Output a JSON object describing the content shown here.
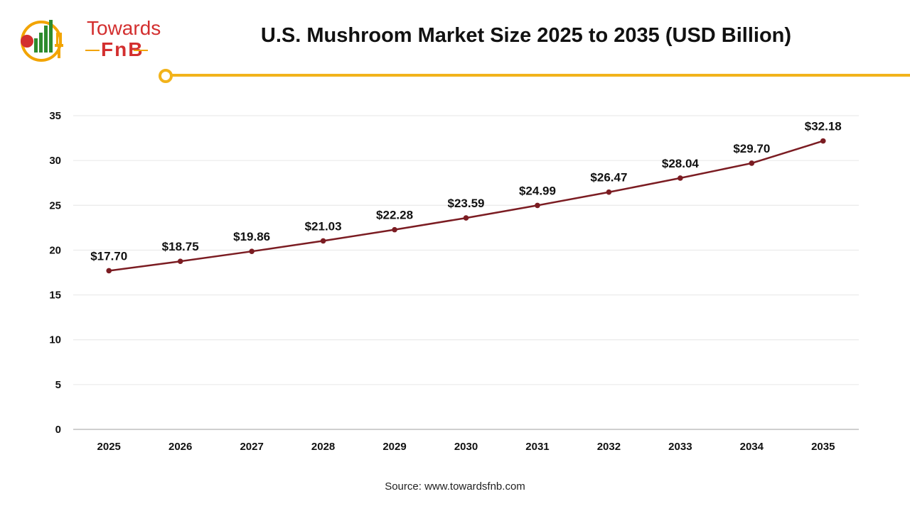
{
  "logo": {
    "line1": "Towards",
    "line2": "FnB",
    "icon": "chart-fork-logo-icon",
    "colors": {
      "red": "#d32f2f",
      "green": "#2e8b2e",
      "yellow": "#f2a400"
    }
  },
  "chart_data": {
    "type": "line",
    "title": "U.S. Mushroom Market Size 2025 to 2035 (USD Billion)",
    "xlabel": "",
    "ylabel": "",
    "categories": [
      "2025",
      "2026",
      "2027",
      "2028",
      "2029",
      "2030",
      "2031",
      "2032",
      "2033",
      "2034",
      "2035"
    ],
    "series": [
      {
        "values": [
          17.7,
          18.75,
          19.86,
          21.03,
          22.28,
          23.59,
          24.99,
          26.47,
          28.04,
          29.7,
          32.18
        ],
        "labels": [
          "$17.70",
          "$18.75",
          "$19.86",
          "$21.03",
          "$22.28",
          "$23.59",
          "$24.99",
          "$26.47",
          "$28.04",
          "$29.70",
          "$32.18"
        ],
        "color": "#7b1c22"
      }
    ],
    "ylim": [
      0,
      35
    ],
    "yticks": [
      0,
      5,
      10,
      15,
      20,
      25,
      30,
      35
    ],
    "grid": true,
    "legend": "none"
  },
  "source": "Source: www.towardsfnb.com",
  "accent_color": "#f2b31b"
}
